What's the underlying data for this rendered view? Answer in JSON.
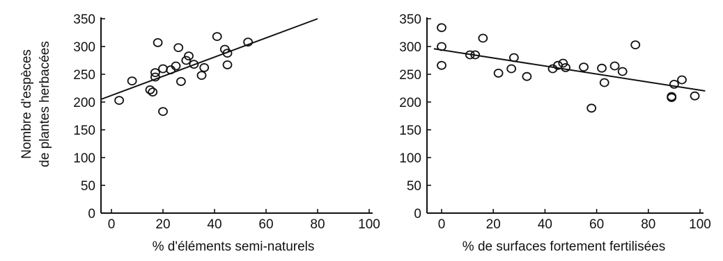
{
  "chart_data": [
    {
      "type": "scatter",
      "title": "",
      "ylabel_lines": [
        "Nombre d'espèces",
        "de plantes herbacées"
      ],
      "xlabel": "% d'éléments semi-naturels",
      "xlim": [
        0,
        100
      ],
      "ylim": [
        0,
        350
      ],
      "xticks": [
        "0",
        "20",
        "40",
        "60",
        "80",
        "100"
      ],
      "yticks": [
        "0",
        "50",
        "100",
        "150",
        "200",
        "250",
        "300",
        "350"
      ],
      "grid": false,
      "points": [
        {
          "x": 3,
          "y": 203
        },
        {
          "x": 8,
          "y": 238
        },
        {
          "x": 15,
          "y": 222
        },
        {
          "x": 16,
          "y": 218
        },
        {
          "x": 17,
          "y": 245
        },
        {
          "x": 17,
          "y": 253
        },
        {
          "x": 18,
          "y": 307
        },
        {
          "x": 20,
          "y": 183
        },
        {
          "x": 20,
          "y": 260
        },
        {
          "x": 23,
          "y": 258
        },
        {
          "x": 25,
          "y": 265
        },
        {
          "x": 26,
          "y": 298
        },
        {
          "x": 27,
          "y": 237
        },
        {
          "x": 29,
          "y": 275
        },
        {
          "x": 30,
          "y": 283
        },
        {
          "x": 32,
          "y": 268
        },
        {
          "x": 35,
          "y": 248
        },
        {
          "x": 36,
          "y": 262
        },
        {
          "x": 41,
          "y": 318
        },
        {
          "x": 44,
          "y": 295
        },
        {
          "x": 45,
          "y": 288
        },
        {
          "x": 45,
          "y": 267
        },
        {
          "x": 53,
          "y": 308
        }
      ],
      "trend_line": {
        "x": [
          -4,
          80
        ],
        "y": [
          205,
          350
        ]
      }
    },
    {
      "type": "scatter",
      "title": "",
      "ylabel_lines": [],
      "xlabel": "% de surfaces fortement fertilisées",
      "xlim": [
        0,
        100
      ],
      "ylim": [
        0,
        350
      ],
      "xticks": [
        "0",
        "20",
        "40",
        "60",
        "80",
        "100"
      ],
      "yticks": [
        "0",
        "50",
        "100",
        "150",
        "200",
        "250",
        "300",
        "350"
      ],
      "grid": false,
      "points": [
        {
          "x": 0,
          "y": 334
        },
        {
          "x": 0,
          "y": 300
        },
        {
          "x": 0,
          "y": 266
        },
        {
          "x": 11,
          "y": 285
        },
        {
          "x": 13,
          "y": 285
        },
        {
          "x": 16,
          "y": 315
        },
        {
          "x": 22,
          "y": 252
        },
        {
          "x": 27,
          "y": 260
        },
        {
          "x": 28,
          "y": 280
        },
        {
          "x": 33,
          "y": 246
        },
        {
          "x": 43,
          "y": 260
        },
        {
          "x": 45,
          "y": 266
        },
        {
          "x": 47,
          "y": 270
        },
        {
          "x": 48,
          "y": 262
        },
        {
          "x": 55,
          "y": 263
        },
        {
          "x": 58,
          "y": 189
        },
        {
          "x": 62,
          "y": 261
        },
        {
          "x": 63,
          "y": 235
        },
        {
          "x": 67,
          "y": 265
        },
        {
          "x": 70,
          "y": 255
        },
        {
          "x": 75,
          "y": 303
        },
        {
          "x": 89,
          "y": 208
        },
        {
          "x": 89,
          "y": 210
        },
        {
          "x": 90,
          "y": 232
        },
        {
          "x": 93,
          "y": 240
        },
        {
          "x": 98,
          "y": 211
        }
      ],
      "trend_line": {
        "x": [
          -3,
          102
        ],
        "y": [
          296,
          220
        ]
      }
    }
  ]
}
